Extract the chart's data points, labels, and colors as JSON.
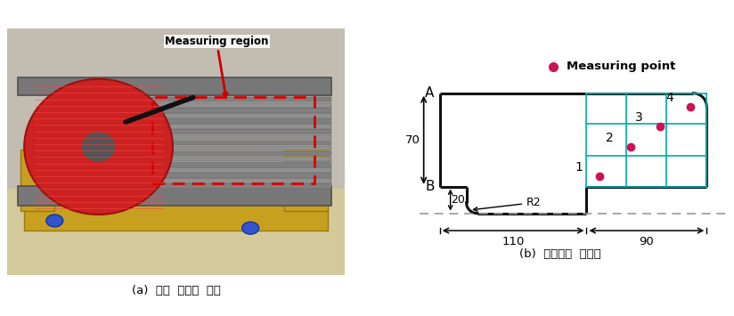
{
  "fig_width": 8.24,
  "fig_height": 3.55,
  "dpi": 100,
  "caption_a": "(a)  단상  변압기  모델",
  "caption_b": "(b)  자속밀도  측정점",
  "legend_label": "Measuring point",
  "measuring_region_label": "Measuring region",
  "dim_label_70": "70",
  "dim_label_20": "20",
  "dim_label_R2": "R2",
  "dim_label_110": "110",
  "dim_label_90": "90",
  "label_A": "A",
  "label_B": "B",
  "grid_color": "#00AAAA",
  "outline_color": "#111111",
  "dash_color": "#999999",
  "point_color": "#CC1155",
  "arrow_red": "#CC0000",
  "bg_color": "#ffffff",
  "photo_bg": "#b0b0b0",
  "photo_table": "#c8bfa0",
  "photo_wood": "#c8a84b",
  "photo_core": "#8a8a8a",
  "photo_coil": "#cc2222",
  "photo_shadow": "#404040"
}
